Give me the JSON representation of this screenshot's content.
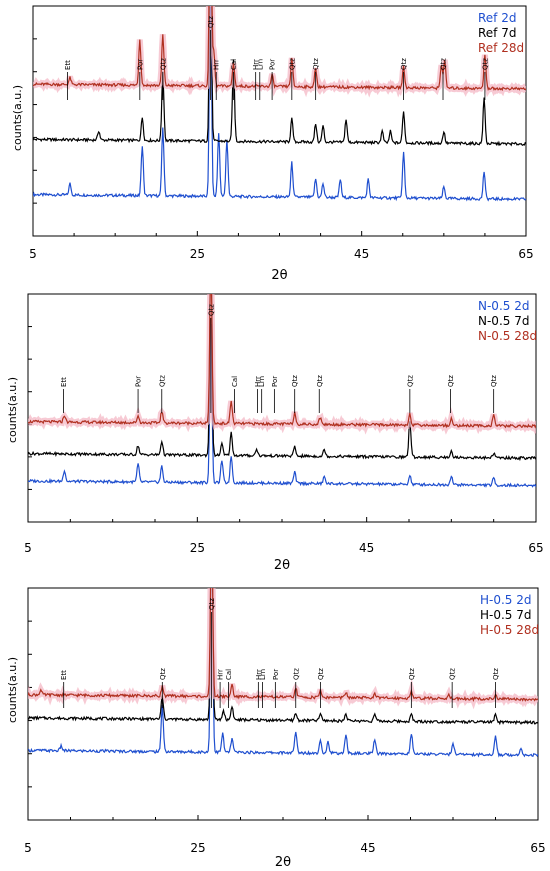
{
  "chart_data": [
    {
      "type": "line",
      "xlabel": "2θ",
      "ylabel": "counts(a.u.)",
      "xlim": [
        5,
        65
      ],
      "x_ticks": [
        "5",
        "25",
        "45",
        "65"
      ],
      "series": [
        {
          "name": "Ref 2d",
          "color": "#1f4fcf",
          "baseline": 0.18,
          "peaks": [
            [
              9.5,
              0.05
            ],
            [
              18.3,
              0.22
            ],
            [
              20.8,
              0.3
            ],
            [
              26.6,
              1.0
            ],
            [
              27.6,
              0.28
            ],
            [
              28.6,
              0.25
            ],
            [
              36.5,
              0.15
            ],
            [
              39.4,
              0.08
            ],
            [
              40.3,
              0.06
            ],
            [
              42.4,
              0.08
            ],
            [
              45.8,
              0.08
            ],
            [
              50.1,
              0.2
            ],
            [
              55.0,
              0.05
            ],
            [
              59.9,
              0.12
            ]
          ]
        },
        {
          "name": "Ref 7d",
          "color": "#000000",
          "baseline": 0.42,
          "peaks": [
            [
              13.0,
              0.04
            ],
            [
              18.3,
              0.1
            ],
            [
              20.8,
              0.3
            ],
            [
              26.6,
              0.98
            ],
            [
              29.4,
              0.35
            ],
            [
              36.5,
              0.1
            ],
            [
              39.4,
              0.08
            ],
            [
              40.3,
              0.07
            ],
            [
              43.1,
              0.1
            ],
            [
              47.5,
              0.05
            ],
            [
              48.5,
              0.05
            ],
            [
              50.1,
              0.14
            ],
            [
              55.0,
              0.05
            ],
            [
              59.9,
              0.2
            ]
          ]
        },
        {
          "name": "Ref 28d",
          "color": "#b03020",
          "baseline": 0.66,
          "peaks": [
            [
              9.5,
              0.03
            ],
            [
              18.0,
              0.2
            ],
            [
              20.8,
              0.22
            ],
            [
              26.6,
              1.0
            ],
            [
              27.0,
              0.15
            ],
            [
              29.4,
              0.1
            ],
            [
              34.1,
              0.05
            ],
            [
              36.5,
              0.12
            ],
            [
              39.4,
              0.08
            ],
            [
              50.1,
              0.09
            ],
            [
              54.7,
              0.1
            ],
            [
              55.1,
              0.12
            ],
            [
              60.0,
              0.15
            ]
          ]
        }
      ]
    },
    {
      "type": "line",
      "xlabel": "2θ",
      "ylabel": "counts(a.u.)",
      "xlim": [
        5,
        65
      ],
      "x_ticks": [
        "5",
        "25",
        "45",
        "65"
      ],
      "series": [
        {
          "name": "N-0.5 2d",
          "color": "#1f4fcf",
          "baseline": 0.18,
          "peaks": [
            [
              9.3,
              0.05
            ],
            [
              18.0,
              0.08
            ],
            [
              20.8,
              0.07
            ],
            [
              26.6,
              0.7
            ],
            [
              27.9,
              0.1
            ],
            [
              29.0,
              0.12
            ],
            [
              36.5,
              0.05
            ],
            [
              40.0,
              0.03
            ],
            [
              50.1,
              0.04
            ],
            [
              55.0,
              0.04
            ],
            [
              60.0,
              0.03
            ]
          ]
        },
        {
          "name": "N-0.5 7d",
          "color": "#000000",
          "baseline": 0.3,
          "peaks": [
            [
              18.0,
              0.04
            ],
            [
              20.8,
              0.06
            ],
            [
              26.6,
              0.95
            ],
            [
              27.9,
              0.05
            ],
            [
              29.0,
              0.1
            ],
            [
              32.0,
              0.03
            ],
            [
              36.5,
              0.04
            ],
            [
              40.0,
              0.03
            ],
            [
              50.1,
              0.16
            ],
            [
              55.0,
              0.03
            ],
            [
              60.0,
              0.02
            ]
          ]
        },
        {
          "name": "N-0.5 28d",
          "color": "#b03020",
          "baseline": 0.44,
          "peaks": [
            [
              9.3,
              0.03
            ],
            [
              18.0,
              0.03
            ],
            [
              20.8,
              0.05
            ],
            [
              26.6,
              0.72
            ],
            [
              29.0,
              0.1
            ],
            [
              36.5,
              0.05
            ],
            [
              39.5,
              0.03
            ],
            [
              50.1,
              0.05
            ],
            [
              55.0,
              0.03
            ],
            [
              60.0,
              0.05
            ]
          ]
        }
      ]
    },
    {
      "type": "line",
      "xlabel": "2θ",
      "ylabel": "counts(a.u.)",
      "xlim": [
        5,
        65
      ],
      "x_ticks": [
        "5",
        "25",
        "45",
        "65"
      ],
      "series": [
        {
          "name": "H-0.5 2d",
          "color": "#1f4fcf",
          "baseline": 0.3,
          "peaks": [
            [
              8.9,
              0.02
            ],
            [
              20.8,
              0.2
            ],
            [
              26.6,
              1.0
            ],
            [
              27.9,
              0.08
            ],
            [
              29.0,
              0.06
            ],
            [
              36.5,
              0.09
            ],
            [
              39.4,
              0.06
            ],
            [
              40.3,
              0.05
            ],
            [
              42.4,
              0.08
            ],
            [
              45.8,
              0.06
            ],
            [
              50.1,
              0.09
            ],
            [
              55.0,
              0.05
            ],
            [
              60.0,
              0.08
            ],
            [
              63.0,
              0.03
            ]
          ]
        },
        {
          "name": "H-0.5 7d",
          "color": "#000000",
          "baseline": 0.44,
          "peaks": [
            [
              20.8,
              0.1
            ],
            [
              26.6,
              0.92
            ],
            [
              28.0,
              0.04
            ],
            [
              29.0,
              0.06
            ],
            [
              36.5,
              0.03
            ],
            [
              39.4,
              0.03
            ],
            [
              42.4,
              0.03
            ],
            [
              45.8,
              0.03
            ],
            [
              50.1,
              0.03
            ],
            [
              60.0,
              0.03
            ]
          ]
        },
        {
          "name": "H-0.5 28d",
          "color": "#b03020",
          "baseline": 0.54,
          "peaks": [
            [
              6.5,
              0.02
            ],
            [
              20.8,
              0.04
            ],
            [
              26.6,
              0.78
            ],
            [
              29.0,
              0.05
            ],
            [
              36.5,
              0.04
            ],
            [
              39.4,
              0.03
            ],
            [
              42.4,
              0.02
            ],
            [
              45.8,
              0.02
            ],
            [
              50.1,
              0.03
            ],
            [
              54.5,
              0.02
            ],
            [
              60.0,
              0.02
            ]
          ]
        }
      ]
    }
  ],
  "annotations": [
    [
      {
        "label": "Ett",
        "x": 9.2
      },
      {
        "label": "Por",
        "x": 18.0
      },
      {
        "label": "Qtz",
        "x": 20.8
      },
      {
        "label": "Qtz",
        "x": 26.6
      },
      {
        "label": "Hrr",
        "x": 27.3
      },
      {
        "label": "Cal",
        "x": 29.4
      },
      {
        "label": "Hrr",
        "x": 32.1
      },
      {
        "label": "Lrn",
        "x": 32.6
      },
      {
        "label": "Por",
        "x": 34.1
      },
      {
        "label": "Qtz",
        "x": 36.5
      },
      {
        "label": "Qtz",
        "x": 39.4
      },
      {
        "label": "Qtz",
        "x": 50.1
      },
      {
        "label": "Qtz",
        "x": 54.9
      },
      {
        "label": "Qtz",
        "x": 60.0
      }
    ],
    [
      {
        "label": "Ett",
        "x": 9.2
      },
      {
        "label": "Por",
        "x": 18.0
      },
      {
        "label": "Qtz",
        "x": 20.8
      },
      {
        "label": "Qtz",
        "x": 26.6
      },
      {
        "label": "Cal",
        "x": 29.4
      },
      {
        "label": "Hrr",
        "x": 32.1
      },
      {
        "label": "Lrn",
        "x": 32.6
      },
      {
        "label": "Por",
        "x": 34.1
      },
      {
        "label": "Qtz",
        "x": 36.5
      },
      {
        "label": "Qtz",
        "x": 39.4
      },
      {
        "label": "Qtz",
        "x": 50.1
      },
      {
        "label": "Qtz",
        "x": 54.9
      },
      {
        "label": "Qtz",
        "x": 60.0
      }
    ],
    [
      {
        "label": "Ett",
        "x": 9.2
      },
      {
        "label": "Qtz",
        "x": 20.8
      },
      {
        "label": "Qtz",
        "x": 26.6
      },
      {
        "label": "Hrr",
        "x": 27.6
      },
      {
        "label": "Cal",
        "x": 28.6
      },
      {
        "label": "Hrr",
        "x": 32.1
      },
      {
        "label": "Lrn",
        "x": 32.6
      },
      {
        "label": "Por",
        "x": 34.1
      },
      {
        "label": "Qtz",
        "x": 36.5
      },
      {
        "label": "Qtz",
        "x": 39.4
      },
      {
        "label": "Qtz",
        "x": 50.1
      },
      {
        "label": "Qtz",
        "x": 54.9
      },
      {
        "label": "Qtz",
        "x": 60.0
      }
    ]
  ]
}
